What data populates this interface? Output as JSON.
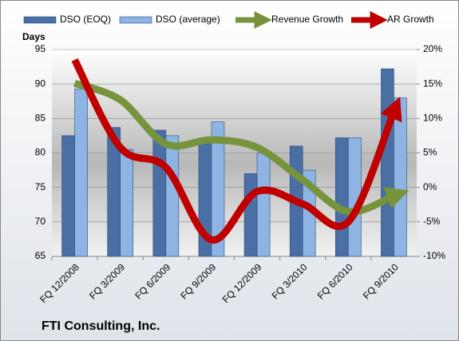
{
  "chart_data": {
    "type": "bar-line",
    "y_label": "Days",
    "footer": "FTI Consulting, Inc.",
    "categories": [
      "FQ 12/2008",
      "FQ 3/2009",
      "FQ 6/2009",
      "FQ 9/2009",
      "FQ 12/2009",
      "FQ 3/2010",
      "FQ 6/2010",
      "FQ 9/2010"
    ],
    "series": [
      {
        "name": "DSO (EOQ)",
        "kind": "bar",
        "color": "#4a6fa5",
        "values": [
          82.5,
          83.7,
          83.3,
          82,
          77,
          81,
          82.2,
          92.2
        ]
      },
      {
        "name": "DSO (average)",
        "kind": "bar",
        "color": "#8db4e2",
        "values": [
          89.3,
          80.5,
          82.5,
          84.5,
          80,
          77.5,
          82.2,
          88
        ]
      },
      {
        "name": "Revenue Growth",
        "kind": "line",
        "axis": "y2",
        "color": "#77933c",
        "values": [
          15.1,
          12.7,
          6.3,
          6.9,
          5.8,
          1.1,
          -3.5,
          -1.2
        ]
      },
      {
        "name": "AR Growth",
        "kind": "line",
        "axis": "y2",
        "color": "#c00000",
        "values": [
          18.5,
          5.8,
          2.9,
          -7.6,
          -0.6,
          -2.4,
          -5,
          11
        ]
      }
    ],
    "ylim": [
      65,
      95
    ],
    "yticks": [
      65,
      70,
      75,
      80,
      85,
      90,
      95
    ],
    "y2lim": [
      -10,
      20
    ],
    "y2ticks": [
      {
        "value": -10,
        "label": "-10%"
      },
      {
        "value": -5,
        "label": "-5%"
      },
      {
        "value": 0,
        "label": "0%"
      },
      {
        "value": 5,
        "label": "5%"
      },
      {
        "value": 10,
        "label": "10%"
      },
      {
        "value": 15,
        "label": "15%"
      },
      {
        "value": 20,
        "label": "20%"
      }
    ],
    "grid": true
  }
}
